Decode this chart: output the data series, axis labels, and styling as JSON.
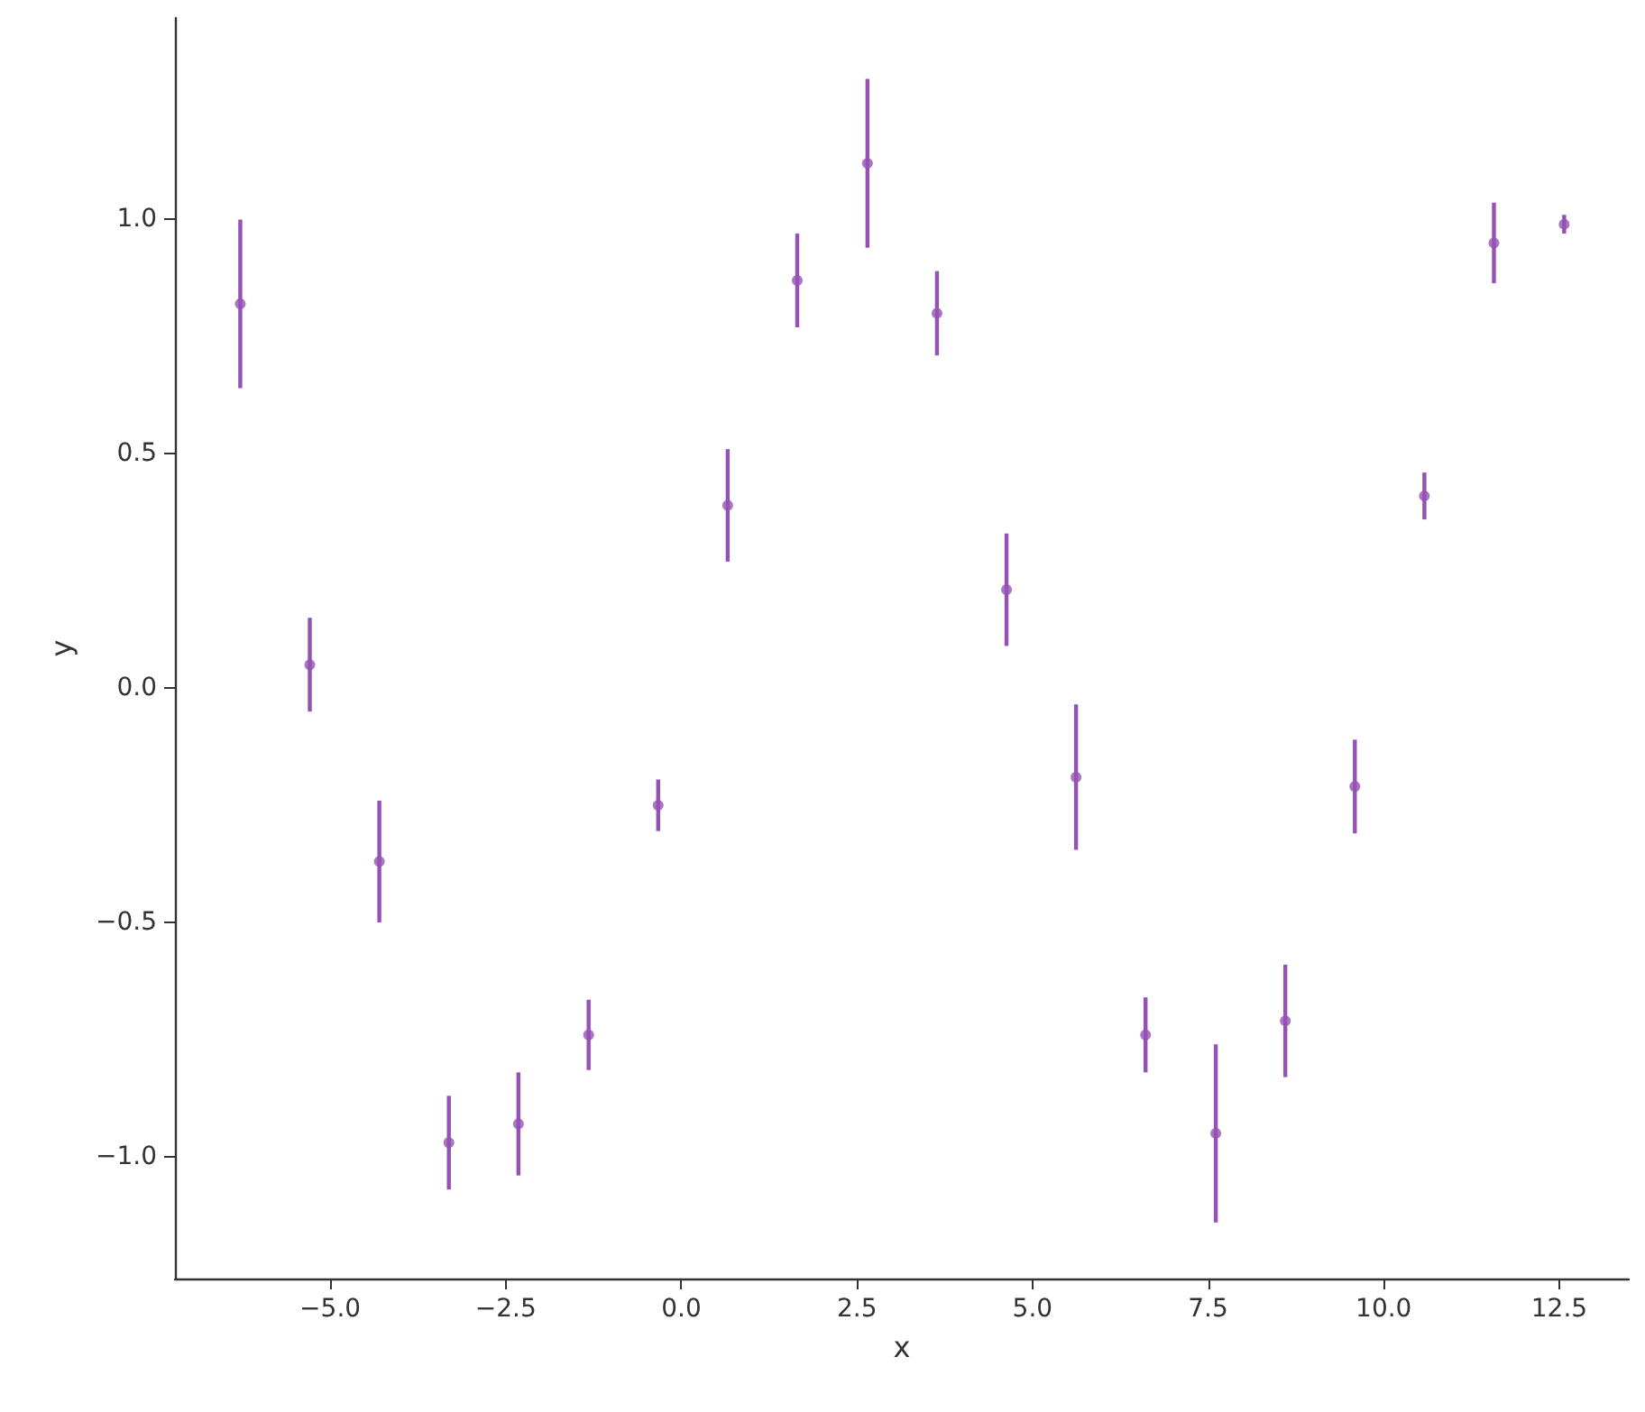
{
  "chart_data": {
    "type": "scatter",
    "xlabel": "x",
    "ylabel": "y",
    "x": [
      -6.28,
      -5.29,
      -4.3,
      -3.31,
      -2.32,
      -1.32,
      -0.33,
      0.66,
      1.65,
      2.65,
      3.64,
      4.63,
      5.62,
      6.61,
      7.61,
      8.6,
      9.59,
      10.58,
      11.57,
      12.57
    ],
    "series": [
      {
        "color": "#9552b4",
        "values": [
          0.82,
          0.05,
          -0.37,
          -0.97,
          -0.93,
          -0.74,
          -0.25,
          0.39,
          0.87,
          1.12,
          0.8,
          0.21,
          -0.19,
          -0.74,
          -0.95,
          -0.71,
          -0.21,
          0.41,
          0.95,
          0.99
        ],
        "errors": [
          0.18,
          0.1,
          0.13,
          0.1,
          0.11,
          0.075,
          0.055,
          0.12,
          0.1,
          0.18,
          0.09,
          0.12,
          0.155,
          0.08,
          0.19,
          0.12,
          0.1,
          0.05,
          0.086,
          0.02
        ]
      }
    ],
    "xlim": [
      -7.21,
      13.49
    ],
    "ylim": [
      -1.26,
      1.43
    ],
    "xticks": [
      {
        "value": -5,
        "label": "−5.0"
      },
      {
        "value": -2.5,
        "label": "−2.5"
      },
      {
        "value": 0,
        "label": "0.0"
      },
      {
        "value": 2.5,
        "label": "2.5"
      },
      {
        "value": 5,
        "label": "5.0"
      },
      {
        "value": 7.5,
        "label": "7.5"
      },
      {
        "value": 10,
        "label": "10.0"
      },
      {
        "value": 12.5,
        "label": "12.5"
      }
    ],
    "yticks": [
      {
        "value": -1,
        "label": "−1.0"
      },
      {
        "value": -0.5,
        "label": "−0.5"
      },
      {
        "value": 0,
        "label": "0.0"
      },
      {
        "value": 0.5,
        "label": "0.5"
      },
      {
        "value": 1,
        "label": "1.0"
      }
    ],
    "grid": false,
    "marker": "circle"
  }
}
